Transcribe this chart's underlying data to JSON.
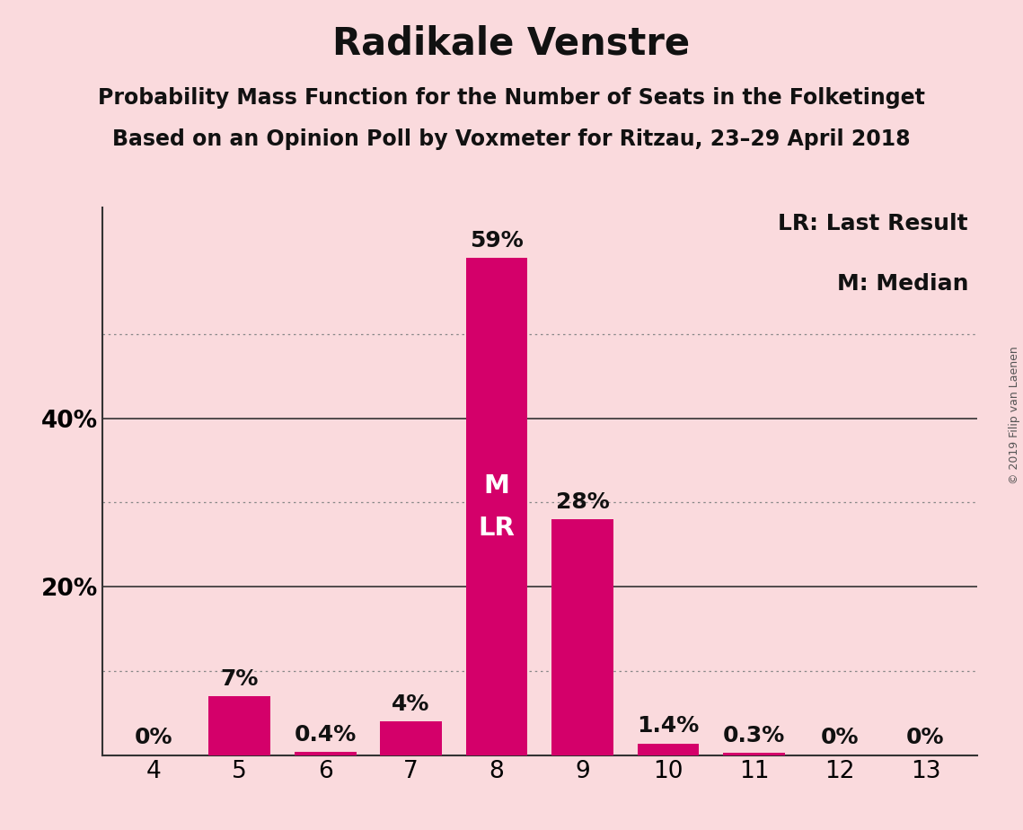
{
  "title": "Radikale Venstre",
  "subtitle1": "Probability Mass Function for the Number of Seats in the Folketinget",
  "subtitle2": "Based on an Opinion Poll by Voxmeter for Ritzau, 23–29 April 2018",
  "categories": [
    4,
    5,
    6,
    7,
    8,
    9,
    10,
    11,
    12,
    13
  ],
  "values": [
    0.0,
    7.0,
    0.4,
    4.0,
    59.0,
    28.0,
    1.4,
    0.3,
    0.0,
    0.0
  ],
  "labels": [
    "0%",
    "7%",
    "0.4%",
    "4%",
    "59%",
    "28%",
    "1.4%",
    "0.3%",
    "0%",
    "0%"
  ],
  "bar_color": "#D4006A",
  "background_color": "#FADADD",
  "text_color": "#111111",
  "label_color_outside": "#111111",
  "label_color_inside": "#FFFFFF",
  "median_seat": 8,
  "last_result_seat": 8,
  "legend_text1": "LR: Last Result",
  "legend_text2": "M: Median",
  "watermark": "© 2019 Filip van Laenen",
  "ylim": [
    0,
    65
  ],
  "solid_grid": [
    20,
    40
  ],
  "dotted_grid": [
    10,
    30,
    50
  ],
  "ytick_positions": [
    20,
    40
  ],
  "ytick_labels": [
    "20%",
    "40%"
  ],
  "title_fontsize": 30,
  "subtitle_fontsize": 17,
  "tick_fontsize": 19,
  "label_fontsize": 18,
  "legend_fontsize": 18,
  "watermark_fontsize": 9,
  "ml_fontsize": 21
}
